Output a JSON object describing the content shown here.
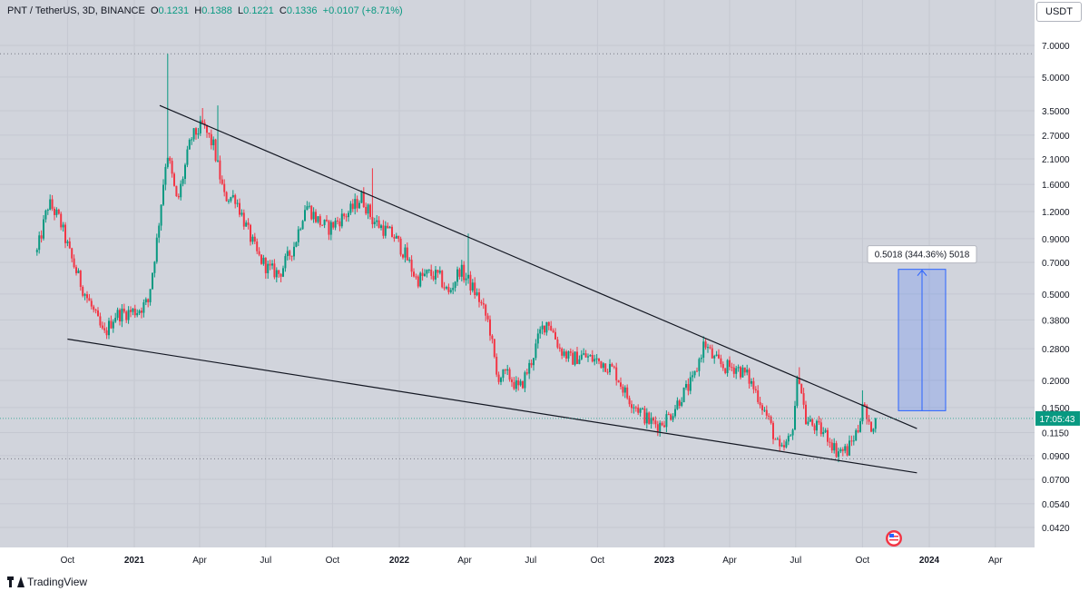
{
  "header": {
    "symbol": "PNT / TetherUS, 3D, BINANCE",
    "o_label": "O",
    "o_value": "0.1231",
    "h_label": "H",
    "h_value": "0.1388",
    "l_label": "L",
    "l_value": "0.1221",
    "c_label": "C",
    "c_value": "0.1336",
    "change": "+0.0107 (+8.71%)"
  },
  "currency_badge": "USDT",
  "footer": {
    "brand": "TradingView"
  },
  "colors": {
    "up": "#089981",
    "down": "#f23645",
    "background": "#d1d4dc",
    "trendline": "#131722",
    "projection": "#2962ff",
    "current_price": "#089981"
  },
  "chart_data": {
    "type": "candlestick",
    "y_scale": "log",
    "y_ticks": [
      "7.0000",
      "5.0000",
      "3.5000",
      "2.7000",
      "2.1000",
      "1.6000",
      "1.2000",
      "0.9000",
      "0.7000",
      "0.5000",
      "0.3800",
      "0.2800",
      "0.2000",
      "0.1500",
      "0.1150",
      "0.0900",
      "0.0700",
      "0.0540",
      "0.0420"
    ],
    "x_ticks": [
      "Oct",
      "2021",
      "Apr",
      "Jul",
      "Oct",
      "2022",
      "Apr",
      "Jul",
      "Oct",
      "2023",
      "Apr",
      "Jul",
      "Oct",
      "2024",
      "Apr"
    ],
    "x_ticks_bold": [
      "2021",
      "2022",
      "2023",
      "2024"
    ],
    "current_price_label": "17:05:43",
    "annotation": {
      "text": "0.5018 (344.36%) 5018",
      "from": 0.145,
      "to": 0.65
    },
    "price_path": [
      [
        "2020-08-20",
        0.78
      ],
      [
        "2020-09-05",
        1.32
      ],
      [
        "2020-09-20",
        1.1
      ],
      [
        "2020-10-05",
        0.75
      ],
      [
        "2020-10-20",
        0.55
      ],
      [
        "2020-11-05",
        0.42
      ],
      [
        "2020-11-20",
        0.32
      ],
      [
        "2020-12-05",
        0.4
      ],
      [
        "2020-12-20",
        0.41
      ],
      [
        "2021-01-05",
        0.42
      ],
      [
        "2021-01-20",
        0.46
      ],
      [
        "2021-02-01",
        0.88
      ],
      [
        "2021-02-15",
        2.3
      ],
      [
        "2021-03-01",
        1.3
      ],
      [
        "2021-03-20",
        2.6
      ],
      [
        "2021-04-05",
        3.0
      ],
      [
        "2021-04-20",
        2.4
      ],
      [
        "2021-05-05",
        1.4
      ],
      [
        "2021-05-20",
        1.4
      ],
      [
        "2021-06-05",
        1.0
      ],
      [
        "2021-06-20",
        0.75
      ],
      [
        "2021-07-05",
        0.65
      ],
      [
        "2021-07-20",
        0.62
      ],
      [
        "2021-08-10",
        0.85
      ],
      [
        "2021-08-25",
        1.3
      ],
      [
        "2021-09-10",
        1.1
      ],
      [
        "2021-09-25",
        1.0
      ],
      [
        "2021-10-10",
        1.1
      ],
      [
        "2021-10-25",
        1.2
      ],
      [
        "2021-11-10",
        1.4
      ],
      [
        "2021-11-25",
        1.1
      ],
      [
        "2021-12-10",
        1.0
      ],
      [
        "2021-12-25",
        0.92
      ],
      [
        "2022-01-10",
        0.75
      ],
      [
        "2022-01-25",
        0.58
      ],
      [
        "2022-02-10",
        0.62
      ],
      [
        "2022-02-25",
        0.6
      ],
      [
        "2022-03-10",
        0.5
      ],
      [
        "2022-03-25",
        0.65
      ],
      [
        "2022-04-05",
        0.58
      ],
      [
        "2022-04-20",
        0.48
      ],
      [
        "2022-05-05",
        0.36
      ],
      [
        "2022-05-15",
        0.21
      ],
      [
        "2022-06-01",
        0.21
      ],
      [
        "2022-06-15",
        0.18
      ],
      [
        "2022-07-01",
        0.24
      ],
      [
        "2022-07-15",
        0.34
      ],
      [
        "2022-07-25",
        0.38
      ],
      [
        "2022-08-10",
        0.28
      ],
      [
        "2022-08-25",
        0.25
      ],
      [
        "2022-09-10",
        0.26
      ],
      [
        "2022-09-25",
        0.25
      ],
      [
        "2022-10-10",
        0.24
      ],
      [
        "2022-10-25",
        0.22
      ],
      [
        "2022-11-10",
        0.17
      ],
      [
        "2022-11-25",
        0.15
      ],
      [
        "2022-12-10",
        0.13
      ],
      [
        "2022-12-25",
        0.125
      ],
      [
        "2023-01-10",
        0.14
      ],
      [
        "2023-01-25",
        0.17
      ],
      [
        "2023-02-10",
        0.2
      ],
      [
        "2023-02-25",
        0.3
      ],
      [
        "2023-03-10",
        0.25
      ],
      [
        "2023-03-25",
        0.23
      ],
      [
        "2023-04-10",
        0.23
      ],
      [
        "2023-04-25",
        0.21
      ],
      [
        "2023-05-10",
        0.17
      ],
      [
        "2023-05-25",
        0.13
      ],
      [
        "2023-06-10",
        0.092
      ],
      [
        "2023-06-25",
        0.11
      ],
      [
        "2023-07-05",
        0.22
      ],
      [
        "2023-07-15",
        0.13
      ],
      [
        "2023-08-01",
        0.12
      ],
      [
        "2023-08-15",
        0.11
      ],
      [
        "2023-08-25",
        0.095
      ],
      [
        "2023-09-10",
        0.095
      ],
      [
        "2023-09-25",
        0.12
      ],
      [
        "2023-10-01",
        0.16
      ],
      [
        "2023-10-10",
        0.12
      ],
      [
        "2023-10-20",
        0.1336
      ]
    ],
    "trendlines": [
      {
        "name": "upper",
        "from": [
          "2021-02-05",
          3.7
        ],
        "to": [
          "2023-12-15",
          0.12
        ]
      },
      {
        "name": "lower",
        "from": [
          "2020-10-01",
          0.31
        ],
        "to": [
          "2023-12-15",
          0.075
        ]
      }
    ],
    "reference_levels": [
      6.4,
      0.087
    ]
  }
}
